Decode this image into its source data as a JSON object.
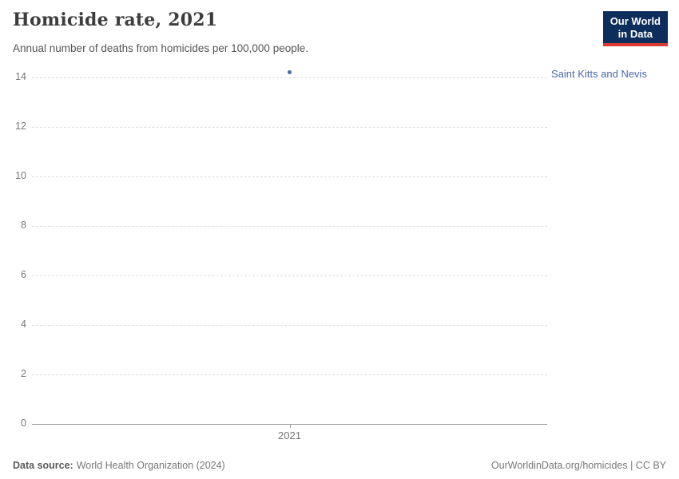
{
  "header": {
    "title": "Homicide rate, 2021",
    "subtitle": "Annual number of deaths from homicides per 100,000 people.",
    "logo": {
      "line1": "Our World",
      "line2": "in Data",
      "bg_color": "#0d2e5c",
      "bar_color": "#d93a33"
    }
  },
  "chart_data": {
    "type": "scatter",
    "title": "Homicide rate, 2021",
    "subtitle": "Annual number of deaths from homicides per 100,000 people.",
    "x": [
      2021
    ],
    "x_tick_labels": [
      "2021"
    ],
    "series": [
      {
        "name": "Saint Kitts and Nevis",
        "values": [
          14.2
        ],
        "color": "#4a69a8",
        "label_color": "#4a69a8"
      }
    ],
    "y_ticks": [
      0,
      2,
      4,
      6,
      8,
      10,
      12,
      14
    ],
    "ylim": [
      0,
      14.5
    ],
    "grid": true,
    "gridline_color": "#dcdcdc",
    "axis_color": "#9a9a9a",
    "legend_position": "right-of-point"
  },
  "footer": {
    "source_label": "Data source:",
    "source_value": "World Health Organization (2024)",
    "credit": "OurWorldinData.org/homicides | CC BY"
  }
}
